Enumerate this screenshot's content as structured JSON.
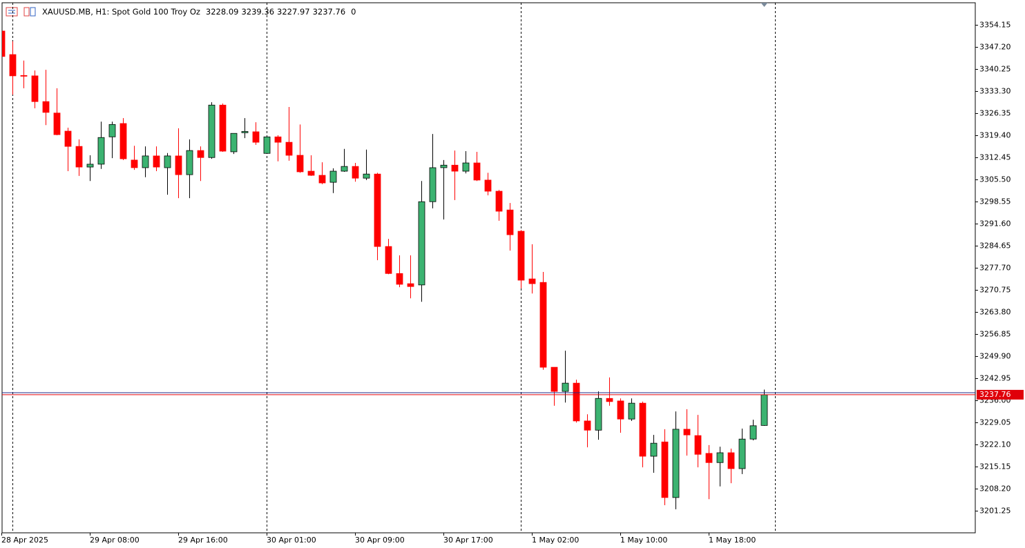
{
  "chart_data": {
    "type": "candlestick",
    "title": "XAUUSD.MB, H1:  Spot Gold 100 Troy Oz",
    "info_value": 0,
    "categories": [
      "28 Apr 2025",
      null,
      null,
      null,
      null,
      null,
      null,
      null,
      "29 Apr 08:00",
      null,
      null,
      null,
      null,
      null,
      null,
      null,
      "29 Apr 16:00",
      null,
      null,
      null,
      null,
      null,
      null,
      null,
      "30 Apr 01:00",
      null,
      null,
      null,
      null,
      null,
      null,
      null,
      "30 Apr 09:00",
      null,
      null,
      null,
      null,
      null,
      null,
      null,
      "30 Apr 17:00",
      null,
      null,
      null,
      null,
      null,
      null,
      null,
      "1 May 02:00",
      null,
      null,
      null,
      null,
      null,
      null,
      null,
      "1 May 10:00",
      null,
      null,
      null,
      null,
      null,
      null,
      null,
      "1 May 18:00",
      null,
      null,
      null,
      null,
      null
    ],
    "open": [
      3352.2,
      3344.8,
      3338.2,
      3338.1,
      3330.0,
      3326.4,
      3320.7,
      3315.9,
      3309.4,
      3310.3,
      3318.9,
      3323.1,
      3311.6,
      3309.2,
      3312.9,
      3309.2,
      3312.9,
      3307.0,
      3314.6,
      3312.4,
      3328.9,
      3314.2,
      3320.2,
      3320.5,
      3313.7,
      3318.9,
      3317.2,
      3313.1,
      3308.1,
      3306.8,
      3304.6,
      3308.1,
      3309.6,
      3305.9,
      3307.2,
      3284.4,
      3275.9,
      3272.7,
      3272.3,
      3298.5,
      3309.2,
      3310.0,
      3308.1,
      3310.7,
      3305.3,
      3301.8,
      3295.9,
      3289.2,
      3274.2,
      3273.1,
      3246.4,
      3238.8,
      3241.4,
      3229.5,
      3226.6,
      3236.6,
      3235.8,
      3230.1,
      3235.1,
      3218.4,
      3222.9,
      3205.4,
      3226.9,
      3224.9,
      3219.3,
      3216.4,
      3219.5,
      3214.5,
      3223.8,
      3228.09
    ],
    "high": [
      3353.0,
      3349.0,
      3342.9,
      3339.8,
      3340.0,
      3334.2,
      3321.8,
      3318.1,
      3313.1,
      3323.7,
      3323.7,
      3324.8,
      3316.1,
      3315.9,
      3315.9,
      3313.8,
      3321.6,
      3318.1,
      3315.9,
      3329.8,
      3329.4,
      3320.0,
      3324.8,
      3323.5,
      3319.4,
      3319.4,
      3328.3,
      3322.8,
      3313.1,
      3310.9,
      3309.0,
      3315.1,
      3310.7,
      3314.9,
      3307.6,
      3286.8,
      3281.6,
      3281.6,
      3305.0,
      3319.8,
      3311.6,
      3314.6,
      3314.4,
      3314.2,
      3307.6,
      3302.2,
      3298.1,
      3289.6,
      3285.1,
      3276.4,
      3246.4,
      3251.6,
      3242.5,
      3231.6,
      3238.8,
      3243.2,
      3236.6,
      3236.6,
      3235.6,
      3225.1,
      3226.9,
      3232.5,
      3233.2,
      3231.4,
      3221.9,
      3221.4,
      3220.8,
      3227.1,
      3229.9,
      3239.36
    ],
    "low": [
      3344.0,
      3332.2,
      3334.2,
      3327.9,
      3322.6,
      3319.4,
      3308.1,
      3306.6,
      3305.0,
      3308.8,
      3312.2,
      3311.6,
      3308.5,
      3306.2,
      3308.1,
      3300.7,
      3299.6,
      3299.6,
      3305.0,
      3312.0,
      3314.2,
      3313.5,
      3318.5,
      3316.4,
      3313.7,
      3311.2,
      3311.4,
      3307.6,
      3306.6,
      3304.0,
      3301.2,
      3307.9,
      3304.8,
      3305.3,
      3280.1,
      3275.7,
      3271.6,
      3268.1,
      3267.0,
      3296.4,
      3292.9,
      3299.0,
      3307.4,
      3305.0,
      3300.5,
      3292.5,
      3283.1,
      3271.2,
      3269.6,
      3245.6,
      3234.3,
      3235.3,
      3229.0,
      3221.2,
      3223.6,
      3234.3,
      3225.8,
      3229.5,
      3214.9,
      3213.2,
      3203.0,
      3201.7,
      3218.6,
      3214.9,
      3204.9,
      3208.9,
      3209.9,
      3212.8,
      3223.4,
      3227.97
    ],
    "close": [
      3344.2,
      3338.1,
      3338.0,
      3330.0,
      3326.6,
      3319.6,
      3315.9,
      3309.4,
      3310.3,
      3318.7,
      3322.8,
      3312.0,
      3309.2,
      3312.9,
      3309.4,
      3312.9,
      3307.0,
      3314.6,
      3312.4,
      3328.9,
      3314.4,
      3320.0,
      3320.6,
      3317.2,
      3318.9,
      3317.2,
      3313.1,
      3307.9,
      3306.8,
      3304.4,
      3308.1,
      3309.6,
      3305.9,
      3307.2,
      3284.4,
      3275.9,
      3272.5,
      3271.8,
      3298.5,
      3309.2,
      3310.0,
      3308.1,
      3310.7,
      3305.3,
      3301.8,
      3295.5,
      3288.1,
      3273.8,
      3272.7,
      3246.4,
      3238.8,
      3241.4,
      3229.5,
      3226.6,
      3236.6,
      3235.6,
      3230.1,
      3235.1,
      3218.4,
      3222.5,
      3205.4,
      3226.9,
      3225.1,
      3219.0,
      3216.4,
      3219.5,
      3214.5,
      3223.8,
      3228.0,
      3237.76
    ],
    "up_color": "#3cb371",
    "down_color": "#ff0000",
    "wick_color": "#000000",
    "price_line": 3237.76,
    "price_line_color": "#e0000a",
    "ask_line": 3238.4,
    "ask_line_color": "#1c2b8a",
    "ylim": [
      3194.3,
      3361.1
    ],
    "yticks": [
      3354.15,
      {
        "value": 3347.2,
        "label": "3347.20"
      },
      3340.25,
      {
        "value": 3333.3,
        "label": "3333.30"
      },
      3326.35,
      {
        "value": 3319.4,
        "label": "3319.40"
      },
      3312.45,
      {
        "value": 3305.5,
        "label": "3305.50"
      },
      3298.55,
      {
        "value": 3291.6,
        "label": "3291.60"
      },
      3284.65,
      {
        "value": 3277.7,
        "label": "3277.70"
      },
      {
        "value": 3270.75,
        "label": "3270.75"
      },
      {
        "value": 3263.8,
        "label": "3263.80"
      },
      3256.85,
      {
        "value": 3249.9,
        "label": "3249.90"
      },
      3242.95,
      {
        "value": 3236,
        "label": "3236.00"
      },
      3229.05,
      {
        "value": 3222.1,
        "label": "3222.10"
      },
      3215.15,
      {
        "value": 3208.2,
        "label": "3208.20"
      },
      3201.25
    ]
  }
}
